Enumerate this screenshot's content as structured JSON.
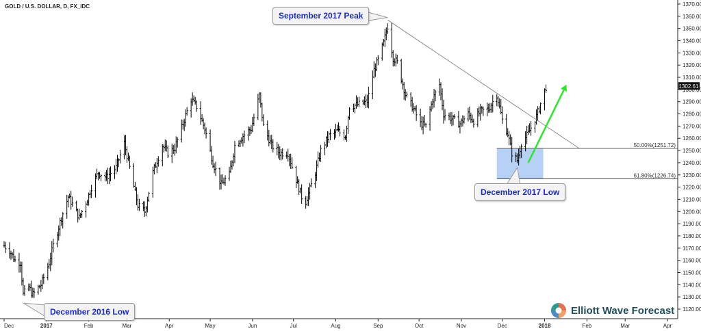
{
  "header": {
    "ticker": "GOLD / U.S. DOLLAR, D, FX_IDC"
  },
  "annotations": {
    "sep_peak": "September 2017 Peak",
    "dec2016_low": "December 2016 Low",
    "dec2017_low": "December 2017 Low"
  },
  "fib": {
    "level50_label": "50.00%(1251.72)",
    "level618_label": "61.80%(1226.74)",
    "level50": 1251.72,
    "level618": 1226.74
  },
  "last_price": {
    "label": "1302.61",
    "value": 1302.61
  },
  "logo": {
    "text": "Elliott Wave Forecast"
  },
  "colors": {
    "bars": "#000000",
    "trendline": "#8c8c8c",
    "fib_zone": "#b7d0f5",
    "arrow": "#2ce62c",
    "annotation_text": "#1a2bd6",
    "logo_text": "#1f4e5a"
  },
  "chart_data": {
    "type": "ohlc",
    "title": "GOLD / U.S. DOLLAR, D, FX_IDC",
    "y_ticks": [
      1120,
      1130,
      1140,
      1150,
      1160,
      1170,
      1180,
      1190,
      1200,
      1210,
      1220,
      1230,
      1240,
      1250,
      1260,
      1270,
      1280,
      1290,
      1300,
      1310,
      1320,
      1330,
      1340,
      1350,
      1360,
      1370
    ],
    "ylim": [
      1115,
      1372
    ],
    "x_tick_labels": [
      "Dec",
      "2017",
      "Feb",
      "Mar",
      "Apr",
      "May",
      "Jun",
      "Jul",
      "Aug",
      "Sep",
      "Oct",
      "Nov",
      "Dec",
      "2018",
      "Feb",
      "Mar",
      "Apr"
    ],
    "x_tick_dates": [
      "2016-12-01",
      "2017-01-01",
      "2017-02-01",
      "2017-03-01",
      "2017-04-01",
      "2017-05-01",
      "2017-06-01",
      "2017-07-01",
      "2017-08-01",
      "2017-09-01",
      "2017-10-01",
      "2017-11-01",
      "2017-12-01",
      "2018-01-01",
      "2018-02-01",
      "2018-03-01",
      "2018-04-01"
    ],
    "series": [
      {
        "values": [
          [
            "2016-12-01",
            1172
          ],
          [
            "2016-12-05",
            1168
          ],
          [
            "2016-12-09",
            1160
          ],
          [
            "2016-12-13",
            1158
          ],
          [
            "2016-12-15",
            1132
          ],
          [
            "2016-12-19",
            1138
          ],
          [
            "2016-12-22",
            1132
          ],
          [
            "2016-12-28",
            1140
          ],
          [
            "2017-01-03",
            1158
          ],
          [
            "2017-01-06",
            1172
          ],
          [
            "2017-01-12",
            1195
          ],
          [
            "2017-01-17",
            1212
          ],
          [
            "2017-01-20",
            1206
          ],
          [
            "2017-01-25",
            1195
          ],
          [
            "2017-01-31",
            1210
          ],
          [
            "2017-02-03",
            1220
          ],
          [
            "2017-02-08",
            1232
          ],
          [
            "2017-02-14",
            1228
          ],
          [
            "2017-02-21",
            1236
          ],
          [
            "2017-02-27",
            1256
          ],
          [
            "2017-03-03",
            1236
          ],
          [
            "2017-03-09",
            1205
          ],
          [
            "2017-03-14",
            1200
          ],
          [
            "2017-03-20",
            1232
          ],
          [
            "2017-03-27",
            1254
          ],
          [
            "2017-03-31",
            1248
          ],
          [
            "2017-04-05",
            1252
          ],
          [
            "2017-04-11",
            1272
          ],
          [
            "2017-04-17",
            1292
          ],
          [
            "2017-04-21",
            1286
          ],
          [
            "2017-04-27",
            1268
          ],
          [
            "2017-05-03",
            1240
          ],
          [
            "2017-05-09",
            1222
          ],
          [
            "2017-05-15",
            1230
          ],
          [
            "2017-05-19",
            1254
          ],
          [
            "2017-05-25",
            1262
          ],
          [
            "2017-05-31",
            1268
          ],
          [
            "2017-06-06",
            1295
          ],
          [
            "2017-06-09",
            1270
          ],
          [
            "2017-06-15",
            1254
          ],
          [
            "2017-06-21",
            1248
          ],
          [
            "2017-06-27",
            1248
          ],
          [
            "2017-07-03",
            1226
          ],
          [
            "2017-07-07",
            1212
          ],
          [
            "2017-07-10",
            1208
          ],
          [
            "2017-07-17",
            1232
          ],
          [
            "2017-07-21",
            1250
          ],
          [
            "2017-07-27",
            1262
          ],
          [
            "2017-08-02",
            1266
          ],
          [
            "2017-08-08",
            1262
          ],
          [
            "2017-08-11",
            1286
          ],
          [
            "2017-08-18",
            1288
          ],
          [
            "2017-08-24",
            1290
          ],
          [
            "2017-08-29",
            1316
          ],
          [
            "2017-09-01",
            1324
          ],
          [
            "2017-09-05",
            1338
          ],
          [
            "2017-09-08",
            1352
          ],
          [
            "2017-09-12",
            1326
          ],
          [
            "2017-09-15",
            1322
          ],
          [
            "2017-09-21",
            1296
          ],
          [
            "2017-09-27",
            1284
          ],
          [
            "2017-10-02",
            1272
          ],
          [
            "2017-10-06",
            1270
          ],
          [
            "2017-10-11",
            1292
          ],
          [
            "2017-10-16",
            1304
          ],
          [
            "2017-10-19",
            1280
          ],
          [
            "2017-10-25",
            1276
          ],
          [
            "2017-10-31",
            1272
          ],
          [
            "2017-11-06",
            1280
          ],
          [
            "2017-11-10",
            1274
          ],
          [
            "2017-11-15",
            1282
          ],
          [
            "2017-11-21",
            1284
          ],
          [
            "2017-11-27",
            1296
          ],
          [
            "2017-12-01",
            1275
          ],
          [
            "2017-12-05",
            1264
          ],
          [
            "2017-12-08",
            1248
          ],
          [
            "2017-12-12",
            1242
          ],
          [
            "2017-12-15",
            1256
          ],
          [
            "2017-12-20",
            1264
          ],
          [
            "2017-12-26",
            1278
          ],
          [
            "2018-01-02",
            1302
          ]
        ]
      }
    ],
    "trendline": {
      "from": [
        "2017-09-08",
        1357
      ],
      "to": [
        "2018-01-26",
        1252
      ]
    },
    "arrow": {
      "from": [
        "2017-12-20",
        1240
      ],
      "to": [
        "2018-01-17",
        1304
      ]
    },
    "fib_zone": {
      "x_start": "2017-11-27",
      "x_end": "2017-12-31",
      "y_top": 1251.72,
      "y_bottom": 1226.74
    },
    "grid": false,
    "legend": "none"
  }
}
